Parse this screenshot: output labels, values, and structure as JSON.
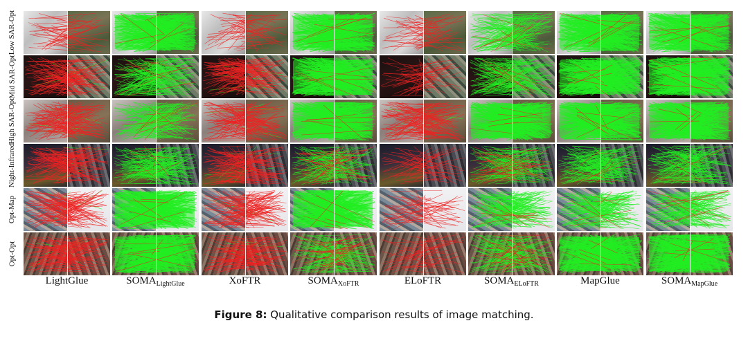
{
  "figure": {
    "rows": [
      "Low SAR-Opt",
      "Mid SAR-Opt",
      "High SAR-Opt",
      "Night-Infrared",
      "Opt-Map",
      "Opt-Opt"
    ],
    "columns": [
      {
        "main": "LightGlue",
        "sub": ""
      },
      {
        "main": "SOMA",
        "sub": "LightGlue"
      },
      {
        "main": "XoFTR",
        "sub": ""
      },
      {
        "main": "SOMA",
        "sub": "XoFTR"
      },
      {
        "main": "ELoFTR",
        "sub": ""
      },
      {
        "main": "SOMA",
        "sub": "ELoFTR"
      },
      {
        "main": "MapGlue",
        "sub": ""
      },
      {
        "main": "SOMA",
        "sub": "MapGlue"
      }
    ],
    "cells": [
      [
        "red-sparse",
        "green-dense",
        "red-sparse",
        "green-dense",
        "red-sparse",
        "green-medium",
        "green-dense",
        "green-dense"
      ],
      [
        "red-dense",
        "green-medium",
        "red-dense",
        "green-dense",
        "red-sparse",
        "green-medium",
        "green-dense",
        "green-dense"
      ],
      [
        "red-dense",
        "green-medium",
        "red-dense",
        "green-dense",
        "red-dense",
        "green-dense",
        "green-dense",
        "green-dense"
      ],
      [
        "red-dense",
        "green-medium",
        "red-dense",
        "green-mixed",
        "red-sparse",
        "green-mixed",
        "green-medium",
        "green-medium"
      ],
      [
        "red-dense",
        "green-dense",
        "red-dense",
        "green-dense",
        "red-sparse",
        "green-medium",
        "green-medium",
        "green-medium"
      ],
      [
        "red-dense",
        "green-dense",
        "red-dense",
        "green-mixed",
        "red-sparse",
        "green-mixed",
        "green-dense",
        "green-dense"
      ]
    ],
    "colors": {
      "match_correct": "#22ee22",
      "match_wrong": "#ee2222"
    }
  },
  "caption": {
    "label": "Figure 8:",
    "text": "Qualitative comparison results of image matching."
  }
}
